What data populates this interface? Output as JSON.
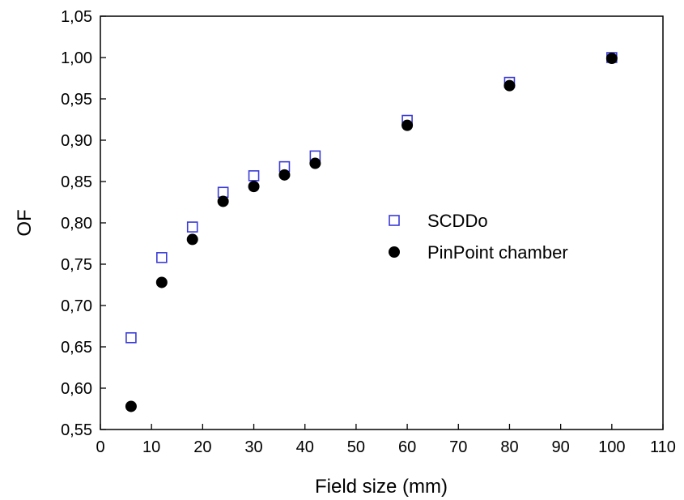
{
  "chart_data": {
    "type": "scatter",
    "title": "",
    "xlabel": "Field size (mm)",
    "ylabel": "OF",
    "xlim": [
      0,
      110
    ],
    "ylim": [
      0.55,
      1.05
    ],
    "x_ticks": [
      0,
      10,
      20,
      30,
      40,
      50,
      60,
      70,
      80,
      90,
      100,
      110
    ],
    "x_tick_labels": [
      "0",
      "10",
      "20",
      "30",
      "40",
      "50",
      "60",
      "70",
      "80",
      "90",
      "100",
      "110"
    ],
    "y_ticks": [
      0.55,
      0.6,
      0.65,
      0.7,
      0.75,
      0.8,
      0.85,
      0.9,
      0.95,
      1.0,
      1.05
    ],
    "y_tick_labels": [
      "0,55",
      "0,60",
      "0,65",
      "0,70",
      "0,75",
      "0,80",
      "0,85",
      "0,90",
      "0,95",
      "1,00",
      "1,05"
    ],
    "grid": false,
    "legend_position": "center-right",
    "series": [
      {
        "name": "SCDDo",
        "marker": "open-square",
        "color": "#3a3ad6",
        "x": [
          6,
          12,
          18,
          24,
          30,
          36,
          42,
          60,
          80,
          100
        ],
        "y": [
          0.661,
          0.758,
          0.795,
          0.837,
          0.857,
          0.868,
          0.881,
          0.924,
          0.97,
          1.0
        ]
      },
      {
        "name": "PinPoint chamber",
        "marker": "filled-circle",
        "color": "#000000",
        "x": [
          6,
          12,
          18,
          24,
          30,
          36,
          42,
          60,
          80,
          100
        ],
        "y": [
          0.578,
          0.728,
          0.78,
          0.826,
          0.844,
          0.858,
          0.872,
          0.918,
          0.966,
          0.999
        ]
      }
    ]
  }
}
